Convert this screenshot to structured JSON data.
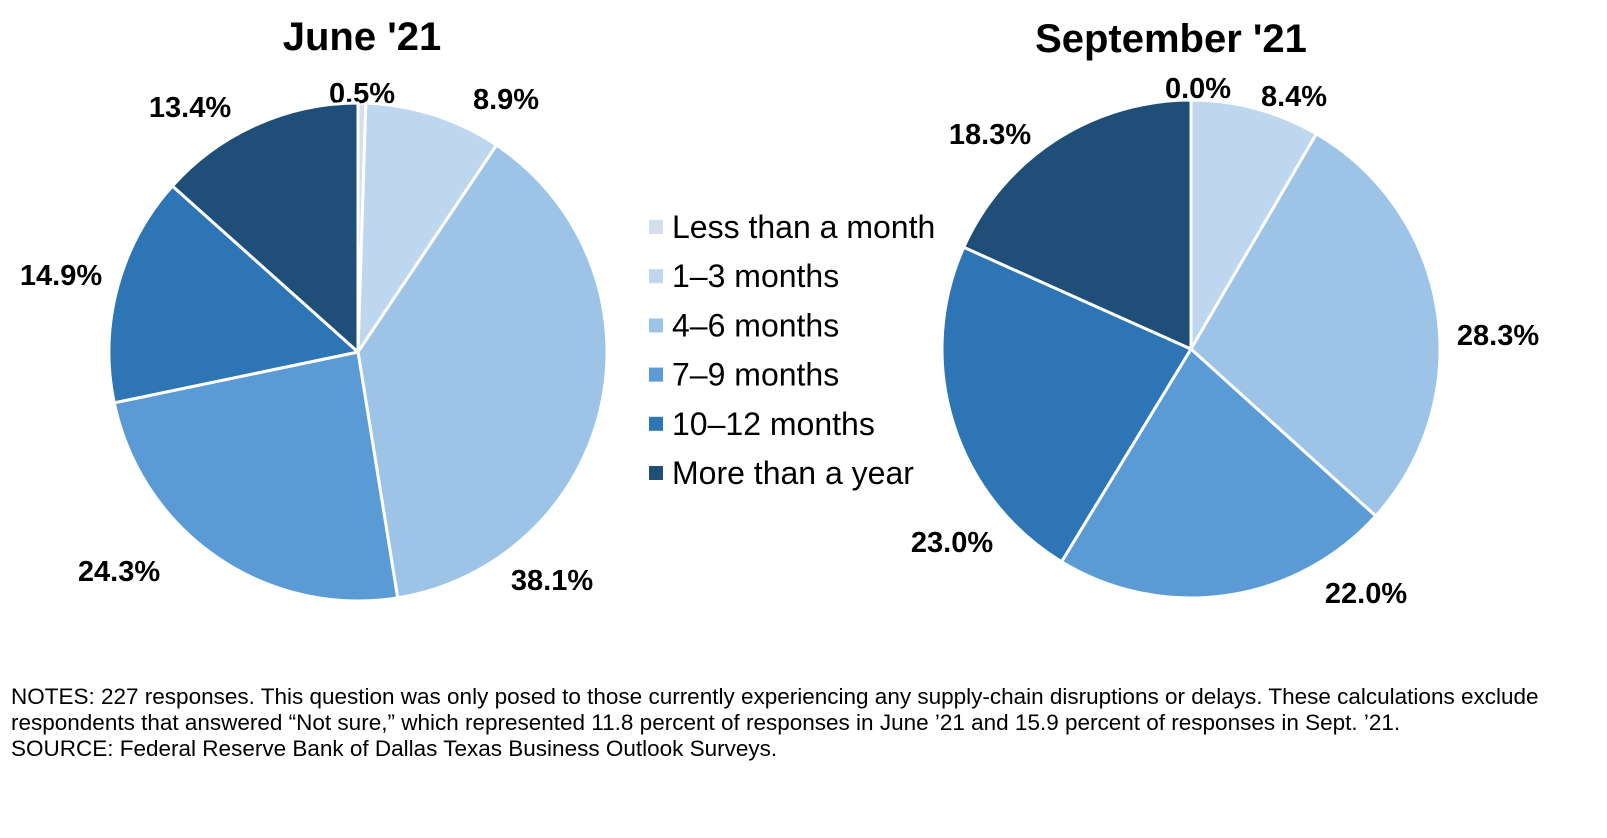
{
  "legend": [
    {
      "label": "Less than a month",
      "color": "#d5dfec"
    },
    {
      "label": "1–3 months",
      "color": "#bed7ee"
    },
    {
      "label": "4–6 months",
      "color": "#9dc3e6"
    },
    {
      "label": "7–9 months",
      "color": "#5b9bd5"
    },
    {
      "label": "10–12 months",
      "color": "#2e75b6"
    },
    {
      "label": "More than a year",
      "color": "#1f4e79"
    }
  ],
  "chart_data": [
    {
      "type": "pie",
      "title": "June '21",
      "categories": [
        "Less than a month",
        "1–3 months",
        "4–6 months",
        "7–9 months",
        "10–12 months",
        "More than a year"
      ],
      "values": [
        0.5,
        8.9,
        38.1,
        24.3,
        14.9,
        13.4
      ],
      "labels": [
        "0.5%",
        "8.9%",
        "38.1%",
        "24.3%",
        "14.9%",
        "13.4%"
      ]
    },
    {
      "type": "pie",
      "title": "September '21",
      "categories": [
        "Less than a month",
        "1–3 months",
        "4–6 months",
        "7–9 months",
        "10–12 months",
        "More than a year"
      ],
      "values": [
        0.0,
        8.4,
        28.3,
        22.0,
        23.0,
        18.3
      ],
      "labels": [
        "0.0%",
        "8.4%",
        "28.3%",
        "22.0%",
        "23.0%",
        "18.3%"
      ]
    }
  ],
  "notes": {
    "line1": "NOTES: 227 responses. This question was only posed to those currently experiencing any supply-chain disruptions or delays. These calculations exclude respondents that answered “Not sure,” which represented 11.8 percent of responses in June ’21 and 15.9 percent of responses in Sept. ’21.",
    "line2": "SOURCE: Federal Reserve Bank of Dallas Texas Business Outlook Surveys."
  }
}
